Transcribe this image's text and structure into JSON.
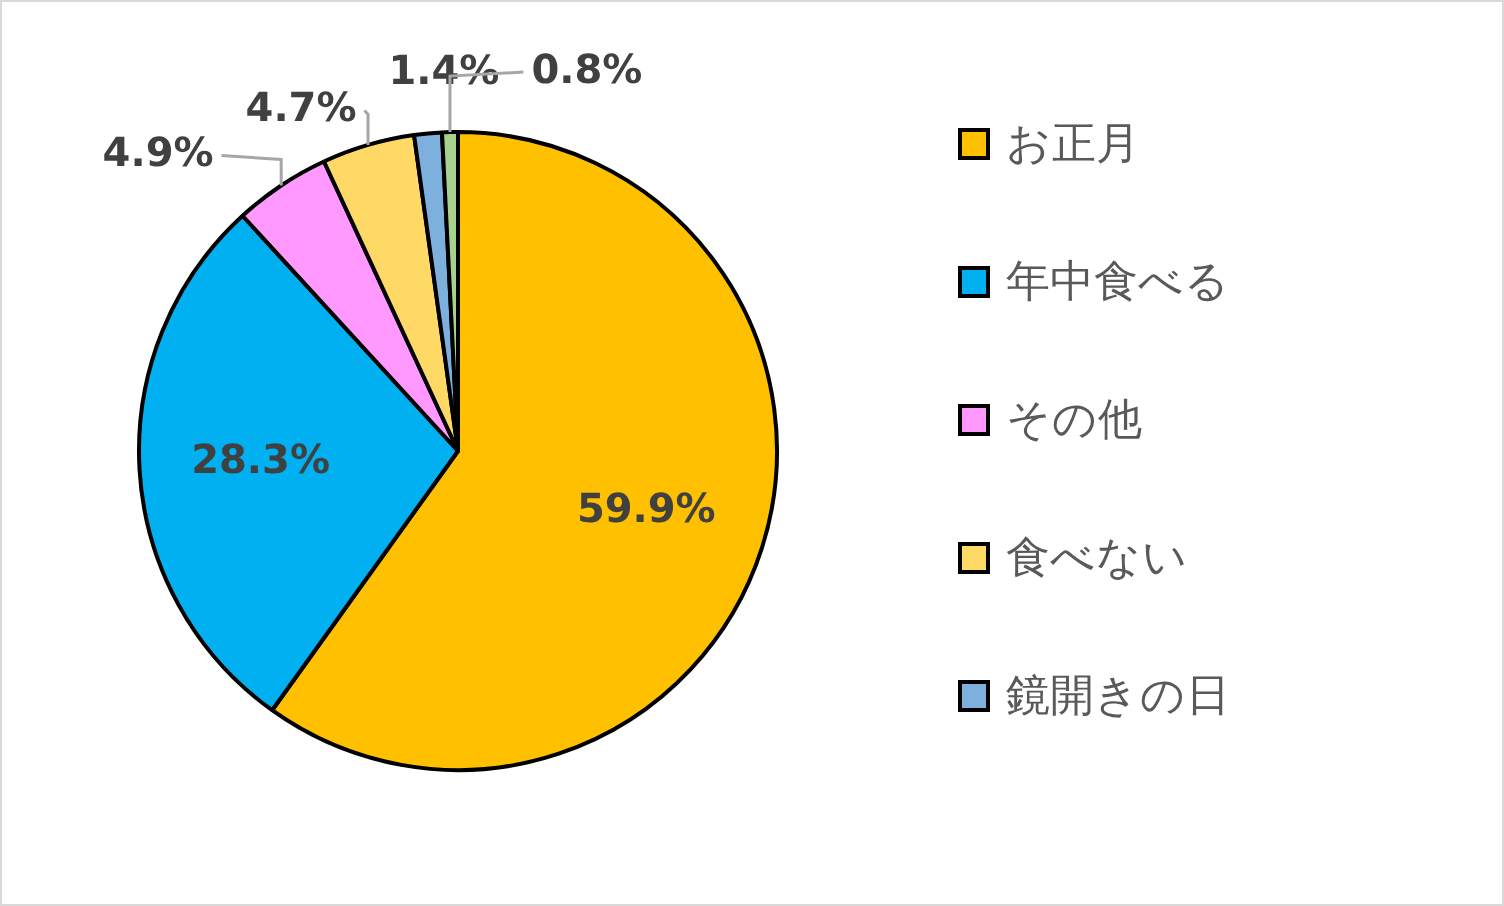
{
  "chart_data": {
    "type": "pie",
    "categories": [
      "お正月",
      "年中食べる",
      "その他",
      "食べない",
      "鏡開きの日",
      null
    ],
    "values": [
      59.9,
      28.3,
      4.9,
      4.7,
      1.4,
      0.8
    ],
    "colors": [
      "#ffc000",
      "#00b0f0",
      "#ff99ff",
      "#ffd966",
      "#7eb0dd",
      "#a9d18e"
    ],
    "value_labels": [
      "59.9%",
      "28.3%",
      "4.9%",
      "4.7%",
      "1.4%",
      "0.8%"
    ],
    "legend": "right"
  }
}
